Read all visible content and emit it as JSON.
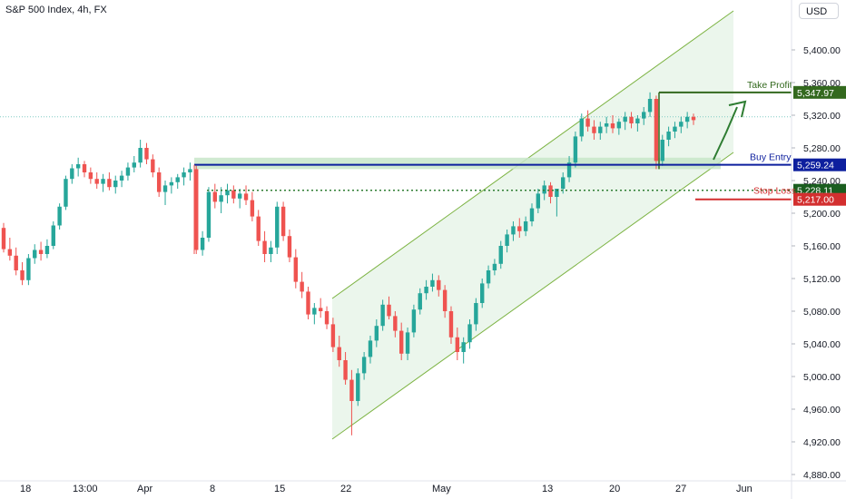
{
  "header": {
    "title": "S&P 500 Index, 4h, FX",
    "currency": "USD"
  },
  "chart_data": {
    "type": "candlestick",
    "ylim": [
      4880,
      5440
    ],
    "y_ticks": [
      "5,400.00",
      "5,360.00",
      "5,320.00",
      "5,280.00",
      "5,240.00",
      "5,200.00",
      "5,160.00",
      "5,120.00",
      "5,080.00",
      "5,040.00",
      "5,000.00",
      "4,960.00",
      "4,920.00",
      "4,880.00"
    ],
    "x_ticks": [
      "18",
      "13:00",
      "Apr",
      "8",
      "15",
      "22",
      "May",
      "13",
      "20",
      "27",
      "Jun"
    ],
    "levels": [
      {
        "name": "Take Profit",
        "value": 5347.97,
        "label": "5,347.97",
        "color": "#33691e"
      },
      {
        "name": "Buy Entry",
        "value": 5259.24,
        "label": "5,259.24",
        "color": "#0d1f9e"
      },
      {
        "name": "",
        "value": 5228.11,
        "label": "5,228.11",
        "color": "#1b5e20"
      },
      {
        "name": "Stop Loss",
        "value": 5217.0,
        "label": "5,217.00",
        "color": "#d32f2f"
      }
    ],
    "colors": {
      "up": "#26a69a",
      "down": "#ef5350",
      "channel": "#8bc34a",
      "support": "#c8e6c9"
    },
    "candles": [
      [
        5182,
        5188,
        5152,
        5156
      ],
      [
        5156,
        5170,
        5142,
        5148
      ],
      [
        5148,
        5158,
        5124,
        5130
      ],
      [
        5130,
        5140,
        5112,
        5118
      ],
      [
        5118,
        5150,
        5112,
        5145
      ],
      [
        5145,
        5162,
        5138,
        5155
      ],
      [
        5155,
        5165,
        5142,
        5150
      ],
      [
        5150,
        5168,
        5145,
        5160
      ],
      [
        5160,
        5190,
        5156,
        5185
      ],
      [
        5185,
        5212,
        5180,
        5208
      ],
      [
        5208,
        5246,
        5204,
        5242
      ],
      [
        5242,
        5260,
        5236,
        5255
      ],
      [
        5255,
        5268,
        5245,
        5260
      ],
      [
        5260,
        5264,
        5244,
        5250
      ],
      [
        5250,
        5256,
        5236,
        5242
      ],
      [
        5242,
        5250,
        5230,
        5236
      ],
      [
        5236,
        5248,
        5226,
        5242
      ],
      [
        5242,
        5250,
        5228,
        5232
      ],
      [
        5232,
        5246,
        5224,
        5240
      ],
      [
        5240,
        5252,
        5232,
        5246
      ],
      [
        5246,
        5262,
        5240,
        5256
      ],
      [
        5256,
        5270,
        5250,
        5262
      ],
      [
        5262,
        5290,
        5256,
        5280
      ],
      [
        5280,
        5286,
        5260,
        5266
      ],
      [
        5266,
        5272,
        5244,
        5250
      ],
      [
        5250,
        5256,
        5220,
        5226
      ],
      [
        5226,
        5240,
        5210,
        5234
      ],
      [
        5234,
        5244,
        5224,
        5238
      ],
      [
        5238,
        5248,
        5230,
        5244
      ],
      [
        5244,
        5256,
        5234,
        5250
      ],
      [
        5250,
        5262,
        5240,
        5254
      ],
      [
        5254,
        5258,
        5150,
        5155
      ],
      [
        5155,
        5178,
        5148,
        5170
      ],
      [
        5170,
        5232,
        5165,
        5226
      ],
      [
        5226,
        5236,
        5206,
        5214
      ],
      [
        5214,
        5232,
        5200,
        5222
      ],
      [
        5222,
        5236,
        5212,
        5228
      ],
      [
        5228,
        5234,
        5212,
        5218
      ],
      [
        5218,
        5230,
        5206,
        5224
      ],
      [
        5224,
        5234,
        5210,
        5216
      ],
      [
        5216,
        5226,
        5190,
        5196
      ],
      [
        5196,
        5204,
        5160,
        5166
      ],
      [
        5166,
        5178,
        5140,
        5150
      ],
      [
        5150,
        5166,
        5140,
        5158
      ],
      [
        5158,
        5214,
        5150,
        5208
      ],
      [
        5208,
        5214,
        5166,
        5172
      ],
      [
        5172,
        5180,
        5140,
        5146
      ],
      [
        5146,
        5156,
        5108,
        5116
      ],
      [
        5116,
        5128,
        5096,
        5104
      ],
      [
        5104,
        5110,
        5070,
        5076
      ],
      [
        5076,
        5090,
        5064,
        5084
      ],
      [
        5084,
        5096,
        5072,
        5080
      ],
      [
        5080,
        5086,
        5058,
        5064
      ],
      [
        5064,
        5072,
        5030,
        5036
      ],
      [
        5036,
        5050,
        5012,
        5020
      ],
      [
        5020,
        5030,
        4990,
        4996
      ],
      [
        4996,
        5008,
        4928,
        4970
      ],
      [
        4970,
        5010,
        4964,
        5004
      ],
      [
        5004,
        5030,
        4996,
        5024
      ],
      [
        5024,
        5050,
        5016,
        5044
      ],
      [
        5044,
        5070,
        5036,
        5062
      ],
      [
        5062,
        5094,
        5056,
        5088
      ],
      [
        5088,
        5098,
        5070,
        5074
      ],
      [
        5074,
        5080,
        5048,
        5056
      ],
      [
        5056,
        5066,
        5020,
        5028
      ],
      [
        5028,
        5060,
        5020,
        5054
      ],
      [
        5054,
        5088,
        5048,
        5082
      ],
      [
        5082,
        5108,
        5076,
        5102
      ],
      [
        5102,
        5118,
        5094,
        5110
      ],
      [
        5110,
        5126,
        5104,
        5118
      ],
      [
        5118,
        5124,
        5098,
        5106
      ],
      [
        5106,
        5112,
        5072,
        5080
      ],
      [
        5080,
        5086,
        5040,
        5048
      ],
      [
        5048,
        5060,
        5020,
        5030
      ],
      [
        5030,
        5048,
        5016,
        5042
      ],
      [
        5042,
        5070,
        5034,
        5064
      ],
      [
        5064,
        5096,
        5056,
        5090
      ],
      [
        5090,
        5120,
        5084,
        5114
      ],
      [
        5114,
        5136,
        5108,
        5130
      ],
      [
        5130,
        5144,
        5124,
        5138
      ],
      [
        5138,
        5166,
        5132,
        5160
      ],
      [
        5160,
        5180,
        5152,
        5174
      ],
      [
        5174,
        5190,
        5166,
        5184
      ],
      [
        5184,
        5194,
        5170,
        5178
      ],
      [
        5178,
        5196,
        5172,
        5190
      ],
      [
        5190,
        5212,
        5184,
        5206
      ],
      [
        5206,
        5230,
        5200,
        5224
      ],
      [
        5224,
        5240,
        5216,
        5234
      ],
      [
        5234,
        5238,
        5212,
        5220
      ],
      [
        5220,
        5226,
        5196,
        5230
      ],
      [
        5230,
        5250,
        5224,
        5244
      ],
      [
        5244,
        5270,
        5238,
        5262
      ],
      [
        5262,
        5300,
        5256,
        5294
      ],
      [
        5294,
        5322,
        5288,
        5316
      ],
      [
        5316,
        5326,
        5300,
        5306
      ],
      [
        5306,
        5314,
        5290,
        5298
      ],
      [
        5298,
        5312,
        5290,
        5306
      ],
      [
        5306,
        5318,
        5298,
        5310
      ],
      [
        5310,
        5320,
        5298,
        5304
      ],
      [
        5304,
        5316,
        5296,
        5312
      ],
      [
        5312,
        5324,
        5302,
        5318
      ],
      [
        5318,
        5324,
        5304,
        5310
      ],
      [
        5310,
        5320,
        5300,
        5316
      ],
      [
        5316,
        5330,
        5308,
        5324
      ],
      [
        5324,
        5348,
        5318,
        5340
      ],
      [
        5340,
        5344,
        5254,
        5264
      ],
      [
        5264,
        5296,
        5258,
        5290
      ],
      [
        5290,
        5306,
        5282,
        5300
      ],
      [
        5300,
        5312,
        5292,
        5306
      ],
      [
        5306,
        5318,
        5298,
        5312
      ],
      [
        5312,
        5324,
        5304,
        5318
      ],
      [
        5318,
        5322,
        5308,
        5314
      ]
    ]
  }
}
